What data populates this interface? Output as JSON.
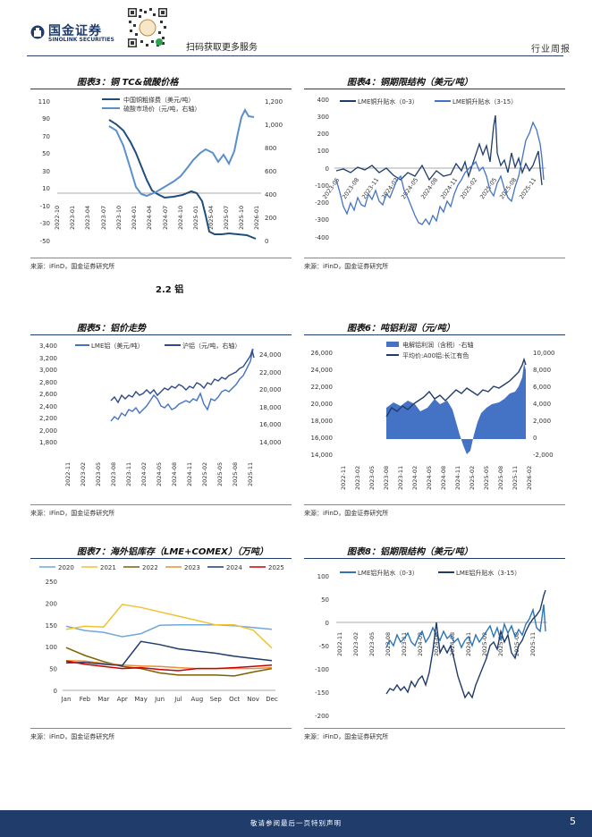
{
  "header": {
    "brand_cn": "国金证券",
    "brand_en": "SINOLINK SECURITIES",
    "qr_caption": "扫码获取更多服务",
    "report_type": "行业周报",
    "qr_badge": "国金证券"
  },
  "section_title": "2.2 铝",
  "figures": [
    {
      "title": "图表3：铜 TC&硫酸价格",
      "source": "来源：iFinD，国金证券研究所",
      "chart_data": {
        "type": "line",
        "series": [
          {
            "name": "中国铜粗搽费（美元/吨）"
          },
          {
            "name": "硫酸市场价（元/吨，右轴）"
          }
        ],
        "y_ticks": [
          "110",
          "90",
          "70",
          "50",
          "30",
          "10",
          "-10",
          "-30",
          "-50"
        ],
        "y2_ticks": [
          "1,200",
          "1,000",
          "800",
          "600",
          "400",
          "200",
          "0"
        ],
        "x_ticks": [
          "2022-10",
          "2023-01",
          "2023-04",
          "2023-07",
          "2023-10",
          "2024-01",
          "2024-04",
          "2024-07",
          "2024-10",
          "2025-01",
          "2025-04",
          "2025-07",
          "2025-10",
          "2026-01"
        ],
        "ylim": [
          -50,
          110
        ],
        "y2lim": [
          0,
          1200
        ]
      }
    },
    {
      "title": "图表4：铜期限结构（美元/吨）",
      "source": "来源：iFinD，国金证券研究所",
      "chart_data": {
        "type": "line",
        "series": [
          {
            "name": "LME铜升贴水（0-3）"
          },
          {
            "name": "LME铜升贴水（3-15）"
          }
        ],
        "y_ticks": [
          "400",
          "300",
          "200",
          "100",
          "0",
          "-100",
          "-200",
          "-300",
          "-400"
        ],
        "x_ticks": [
          "2023-05",
          "2023-08",
          "2023-11",
          "2024-02",
          "2024-05",
          "2024-08",
          "2024-11",
          "2025-02",
          "2025-05",
          "2025-08",
          "2025-11"
        ],
        "ylim": [
          -400,
          400
        ]
      }
    },
    {
      "title": "图表5：铝价走势",
      "source": "来源：iFinD，国金证券研究所",
      "chart_data": {
        "type": "line",
        "series": [
          {
            "name": "LME铝（美元/吨）"
          },
          {
            "name": "沪铝（元/吨，右轴）"
          }
        ],
        "y_ticks": [
          "3,400",
          "3,200",
          "3,000",
          "2,800",
          "2,600",
          "2,400",
          "2,200",
          "2,000",
          "1,800"
        ],
        "y2_ticks": [
          "24,000",
          "22,000",
          "20,000",
          "18,000",
          "16,000",
          "14,000"
        ],
        "x_ticks": [
          "2022-11",
          "2023-02",
          "2023-05",
          "2023-08",
          "2023-11",
          "2024-02",
          "2024-05",
          "2024-08",
          "2024-11",
          "2025-02",
          "2025-05",
          "2025-08",
          "2025-11"
        ],
        "ylim": [
          1800,
          3400
        ],
        "y2lim": [
          14000,
          24000
        ]
      }
    },
    {
      "title": "图表6：吨铝利润（元/吨）",
      "source": "来源：iFinD，国金证券研究所",
      "chart_data": {
        "type": "area",
        "series": [
          {
            "name": "电解铝利润（含税）-右轴"
          },
          {
            "name": "平均价:A00铝:长江有色"
          }
        ],
        "y_ticks": [
          "26,000",
          "24,000",
          "22,000",
          "20,000",
          "18,000",
          "16,000",
          "14,000"
        ],
        "y2_ticks": [
          "10,000",
          "8,000",
          "6,000",
          "4,000",
          "2,000",
          "0",
          "-2,000"
        ],
        "x_ticks": [
          "2022-11",
          "2023-02",
          "2023-05",
          "2023-08",
          "2023-11",
          "2024-02",
          "2024-05",
          "2024-08",
          "2024-11",
          "2025-02",
          "2025-05",
          "2025-08",
          "2025-11",
          "2026-02"
        ],
        "ylim": [
          14000,
          26000
        ],
        "y2lim": [
          -2000,
          10000
        ]
      }
    },
    {
      "title": "图表7：海外铝库存（LME+COMEX）（万吨）",
      "source": "来源：iFinD，国金证券研究所",
      "chart_data": {
        "type": "line",
        "categories": [
          "Jan",
          "Feb",
          "Mar",
          "Apr",
          "May",
          "Jun",
          "Jul",
          "Aug",
          "Sep",
          "Oct",
          "Nov",
          "Dec"
        ],
        "series": [
          {
            "name": "2020",
            "color": "#6fa8dc",
            "values": [
              147,
              137,
              133,
              123,
              130,
              149,
              150,
              150,
              150,
              148,
              144,
              140
            ]
          },
          {
            "name": "2021",
            "color": "#f1c232",
            "values": [
              140,
              147,
              145,
              197,
              190,
              180,
              170,
              160,
              150,
              150,
              138,
              97
            ]
          },
          {
            "name": "2022",
            "color": "#7f6000",
            "values": [
              98,
              80,
              66,
              55,
              50,
              40,
              35,
              35,
              35,
              33,
              42,
              50
            ]
          },
          {
            "name": "2023",
            "color": "#e69138",
            "values": [
              68,
              67,
              62,
              58,
              56,
              55,
              52,
              50,
              50,
              50,
              50,
              52
            ]
          },
          {
            "name": "2024",
            "color": "#1f3c6b",
            "values": [
              63,
              64,
              60,
              57,
              112,
              105,
              95,
              90,
              85,
              78,
              73,
              68
            ]
          },
          {
            "name": "2025",
            "color": "#cc0000",
            "values": [
              67,
              60,
              55,
              50,
              52,
              48,
              45,
              50,
              50,
              52,
              55,
              58
            ]
          }
        ],
        "ylim": [
          0,
          250
        ],
        "y_ticks": [
          "250",
          "200",
          "150",
          "100",
          "50",
          "0"
        ]
      }
    },
    {
      "title": "图表8：铝期限结构（美元/吨）",
      "source": "来源：iFinD，国金证券研究所",
      "chart_data": {
        "type": "line",
        "series": [
          {
            "name": "LME铝升贴水（0-3）"
          },
          {
            "name": "LME铝升贴水（3-15）"
          }
        ],
        "y_ticks": [
          "100",
          "50",
          "0",
          "-50",
          "-100",
          "-150",
          "-200"
        ],
        "x_ticks": [
          "2022-11",
          "2023-02",
          "2023-05",
          "2023-08",
          "2023-11",
          "2024-02",
          "2024-05",
          "2024-08",
          "2024-11",
          "2025-02",
          "2025-05",
          "2025-08",
          "2025-11"
        ],
        "ylim": [
          -200,
          100
        ]
      }
    }
  ],
  "footer": {
    "disclaimer": "敬请参阅最后一页特别声明",
    "page_number": "5"
  }
}
